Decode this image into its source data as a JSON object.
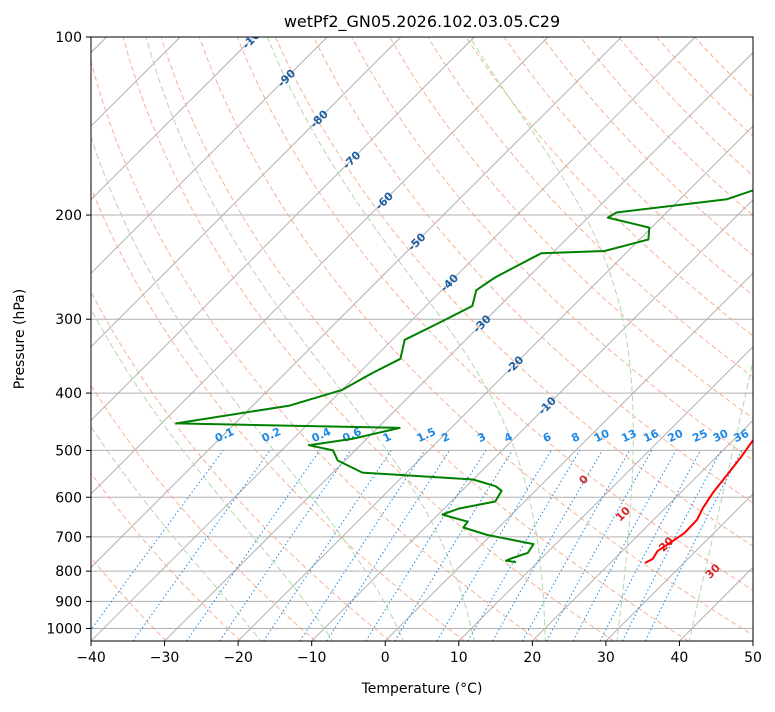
{
  "chart_data": {
    "type": "line",
    "title": "wetPf2_GN05.2026.102.03.05.C29",
    "xlabel": "Temperature (°C)",
    "ylabel": "Pressure (hPa)",
    "xlim": [
      -40,
      50
    ],
    "ylim": [
      1050,
      100
    ],
    "x_ticks": [
      -40,
      -30,
      -20,
      -10,
      0,
      10,
      20,
      30,
      40,
      50
    ],
    "x_tick_labels": [
      "−40",
      "−30",
      "−20",
      "−10",
      "0",
      "10",
      "20",
      "30",
      "40",
      "50"
    ],
    "y_ticks": [
      1000,
      900,
      800,
      700,
      600,
      500,
      400,
      300,
      200,
      100
    ],
    "y_tick_labels": [
      "1000",
      "900",
      "800",
      "700",
      "600",
      "500",
      "400",
      "300",
      "200",
      "100"
    ],
    "skew_deg": 45,
    "series": [
      {
        "name": "temperature",
        "color": "#ff0000",
        "points": [
          [
            -0.7,
            130
          ],
          [
            0.6,
            142
          ],
          [
            2.5,
            155
          ],
          [
            5.5,
            172
          ],
          [
            7.6,
            185
          ],
          [
            9.0,
            197
          ],
          [
            10.0,
            215
          ],
          [
            11.2,
            235
          ],
          [
            12.8,
            250
          ],
          [
            14.8,
            263
          ],
          [
            15.8,
            278
          ],
          [
            16.6,
            295
          ],
          [
            17.6,
            315
          ],
          [
            18.1,
            335
          ],
          [
            18.8,
            355
          ],
          [
            19.5,
            375
          ],
          [
            20.4,
            395
          ],
          [
            21.4,
            415
          ],
          [
            21.5,
            435
          ],
          [
            22.5,
            470
          ],
          [
            23.4,
            515
          ],
          [
            23.9,
            550
          ],
          [
            24.4,
            590
          ],
          [
            25.1,
            625
          ],
          [
            25.9,
            655
          ],
          [
            26.0,
            690
          ],
          [
            25.4,
            715
          ],
          [
            24.8,
            740
          ],
          [
            25.2,
            763
          ],
          [
            24.7,
            775
          ]
        ]
      },
      {
        "name": "dewpoint",
        "color": "#008000",
        "points": [
          [
            -1.3,
            100
          ],
          [
            -1.5,
            108
          ],
          [
            -1.6,
            115
          ],
          [
            -1.6,
            122
          ],
          [
            -1.0,
            130
          ],
          [
            -3.2,
            140
          ],
          [
            -5.5,
            150
          ],
          [
            -8.7,
            175
          ],
          [
            -13.6,
            188
          ],
          [
            -26.8,
            198
          ],
          [
            -27.3,
            202
          ],
          [
            -20.3,
            210
          ],
          [
            -18.8,
            220
          ],
          [
            -23.2,
            230
          ],
          [
            -31.5,
            232
          ],
          [
            -34.5,
            255
          ],
          [
            -35.3,
            268
          ],
          [
            -33.7,
            285
          ],
          [
            -36.0,
            305
          ],
          [
            -38.3,
            325
          ],
          [
            -36.3,
            350
          ],
          [
            -38.2,
            370
          ],
          [
            -40.0,
            395
          ],
          [
            -45.0,
            420
          ],
          [
            -58.0,
            450
          ],
          [
            -27.0,
            458
          ],
          [
            -32.0,
            478
          ],
          [
            -37.0,
            490
          ],
          [
            -33.0,
            500
          ],
          [
            -31.0,
            520
          ],
          [
            -26.0,
            545
          ],
          [
            -10.0,
            560
          ],
          [
            -6.0,
            575
          ],
          [
            -4.6,
            585
          ],
          [
            -4.0,
            610
          ],
          [
            -8.0,
            627
          ],
          [
            -9.4,
            642
          ],
          [
            -5.0,
            660
          ],
          [
            -4.8,
            675
          ],
          [
            -0.5,
            695
          ],
          [
            7.0,
            720
          ],
          [
            7.4,
            745
          ],
          [
            6.0,
            760
          ],
          [
            5.5,
            768
          ],
          [
            6.2,
            770
          ],
          [
            7.1,
            773
          ]
        ]
      }
    ],
    "dry_adiabats_K": [
      220,
      230,
      240,
      250,
      260,
      270,
      280,
      290,
      300,
      310,
      320,
      330,
      340,
      350,
      360,
      370,
      380,
      390,
      400,
      410,
      420,
      430,
      440,
      450
    ],
    "moist_adiabats_C": [
      -20,
      -10,
      0,
      10,
      20,
      30,
      40
    ],
    "mixing_ratio_lines_gkg": [
      0.1,
      0.2,
      0.4,
      0.6,
      1,
      1.5,
      2,
      3,
      4,
      6,
      8,
      10,
      13,
      16,
      20,
      25,
      30,
      36
    ],
    "mixing_ratio_labels": [
      "0.1",
      "0.2",
      "0.4",
      "0.6",
      "1",
      "1.5",
      "2",
      "3",
      "4",
      "6",
      "8",
      "10",
      "13",
      "16",
      "20",
      "25",
      "30",
      "36"
    ],
    "isotherm_labels": [
      "-100",
      "-90",
      "-80",
      "-70",
      "-60",
      "-50",
      "-40",
      "-30",
      "-20",
      "-10"
    ],
    "moist_labels": [
      "0",
      "10",
      "20",
      "30",
      "40"
    ],
    "colors": {
      "isotherm": "#a9a9a9",
      "dry_adiabat": "#f4a582",
      "moist_adiabat": "#a6d7a0",
      "mixing_ratio": "#1e88e5",
      "isotherm_label": "#1f5fa0",
      "moist_label": "#d62728",
      "grid": "#b0b0b0"
    }
  }
}
